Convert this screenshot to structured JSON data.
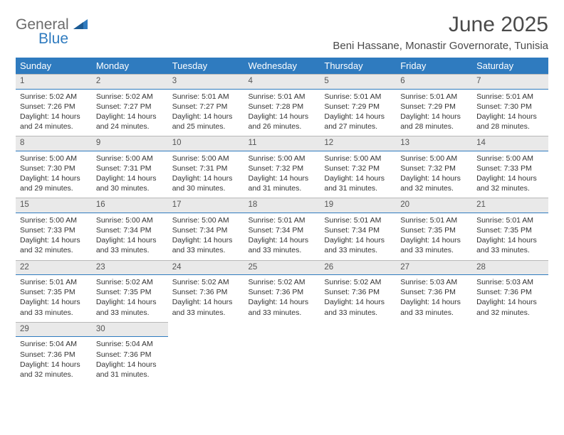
{
  "brand": {
    "general": "General",
    "blue": "Blue"
  },
  "title": "June 2025",
  "location": "Beni Hassane, Monastir Governorate, Tunisia",
  "colors": {
    "header_bg": "#2f7bbf",
    "header_fg": "#ffffff",
    "daynum_bg": "#e9e9e9",
    "daynum_border_top": "#b8b8b8",
    "daynum_border_bottom": "#2f7bbf",
    "text": "#333333",
    "title_text": "#4a4a4a"
  },
  "weekdays": [
    "Sunday",
    "Monday",
    "Tuesday",
    "Wednesday",
    "Thursday",
    "Friday",
    "Saturday"
  ],
  "weeks": [
    [
      {
        "n": "1",
        "sr": "5:02 AM",
        "ss": "7:26 PM",
        "dl": "14 hours and 24 minutes."
      },
      {
        "n": "2",
        "sr": "5:02 AM",
        "ss": "7:27 PM",
        "dl": "14 hours and 24 minutes."
      },
      {
        "n": "3",
        "sr": "5:01 AM",
        "ss": "7:27 PM",
        "dl": "14 hours and 25 minutes."
      },
      {
        "n": "4",
        "sr": "5:01 AM",
        "ss": "7:28 PM",
        "dl": "14 hours and 26 minutes."
      },
      {
        "n": "5",
        "sr": "5:01 AM",
        "ss": "7:29 PM",
        "dl": "14 hours and 27 minutes."
      },
      {
        "n": "6",
        "sr": "5:01 AM",
        "ss": "7:29 PM",
        "dl": "14 hours and 28 minutes."
      },
      {
        "n": "7",
        "sr": "5:01 AM",
        "ss": "7:30 PM",
        "dl": "14 hours and 28 minutes."
      }
    ],
    [
      {
        "n": "8",
        "sr": "5:00 AM",
        "ss": "7:30 PM",
        "dl": "14 hours and 29 minutes."
      },
      {
        "n": "9",
        "sr": "5:00 AM",
        "ss": "7:31 PM",
        "dl": "14 hours and 30 minutes."
      },
      {
        "n": "10",
        "sr": "5:00 AM",
        "ss": "7:31 PM",
        "dl": "14 hours and 30 minutes."
      },
      {
        "n": "11",
        "sr": "5:00 AM",
        "ss": "7:32 PM",
        "dl": "14 hours and 31 minutes."
      },
      {
        "n": "12",
        "sr": "5:00 AM",
        "ss": "7:32 PM",
        "dl": "14 hours and 31 minutes."
      },
      {
        "n": "13",
        "sr": "5:00 AM",
        "ss": "7:32 PM",
        "dl": "14 hours and 32 minutes."
      },
      {
        "n": "14",
        "sr": "5:00 AM",
        "ss": "7:33 PM",
        "dl": "14 hours and 32 minutes."
      }
    ],
    [
      {
        "n": "15",
        "sr": "5:00 AM",
        "ss": "7:33 PM",
        "dl": "14 hours and 32 minutes."
      },
      {
        "n": "16",
        "sr": "5:00 AM",
        "ss": "7:34 PM",
        "dl": "14 hours and 33 minutes."
      },
      {
        "n": "17",
        "sr": "5:00 AM",
        "ss": "7:34 PM",
        "dl": "14 hours and 33 minutes."
      },
      {
        "n": "18",
        "sr": "5:01 AM",
        "ss": "7:34 PM",
        "dl": "14 hours and 33 minutes."
      },
      {
        "n": "19",
        "sr": "5:01 AM",
        "ss": "7:34 PM",
        "dl": "14 hours and 33 minutes."
      },
      {
        "n": "20",
        "sr": "5:01 AM",
        "ss": "7:35 PM",
        "dl": "14 hours and 33 minutes."
      },
      {
        "n": "21",
        "sr": "5:01 AM",
        "ss": "7:35 PM",
        "dl": "14 hours and 33 minutes."
      }
    ],
    [
      {
        "n": "22",
        "sr": "5:01 AM",
        "ss": "7:35 PM",
        "dl": "14 hours and 33 minutes."
      },
      {
        "n": "23",
        "sr": "5:02 AM",
        "ss": "7:35 PM",
        "dl": "14 hours and 33 minutes."
      },
      {
        "n": "24",
        "sr": "5:02 AM",
        "ss": "7:36 PM",
        "dl": "14 hours and 33 minutes."
      },
      {
        "n": "25",
        "sr": "5:02 AM",
        "ss": "7:36 PM",
        "dl": "14 hours and 33 minutes."
      },
      {
        "n": "26",
        "sr": "5:02 AM",
        "ss": "7:36 PM",
        "dl": "14 hours and 33 minutes."
      },
      {
        "n": "27",
        "sr": "5:03 AM",
        "ss": "7:36 PM",
        "dl": "14 hours and 33 minutes."
      },
      {
        "n": "28",
        "sr": "5:03 AM",
        "ss": "7:36 PM",
        "dl": "14 hours and 32 minutes."
      }
    ],
    [
      {
        "n": "29",
        "sr": "5:04 AM",
        "ss": "7:36 PM",
        "dl": "14 hours and 32 minutes."
      },
      {
        "n": "30",
        "sr": "5:04 AM",
        "ss": "7:36 PM",
        "dl": "14 hours and 31 minutes."
      },
      null,
      null,
      null,
      null,
      null
    ]
  ],
  "labels": {
    "sunrise": "Sunrise: ",
    "sunset": "Sunset: ",
    "daylight": "Daylight: "
  }
}
